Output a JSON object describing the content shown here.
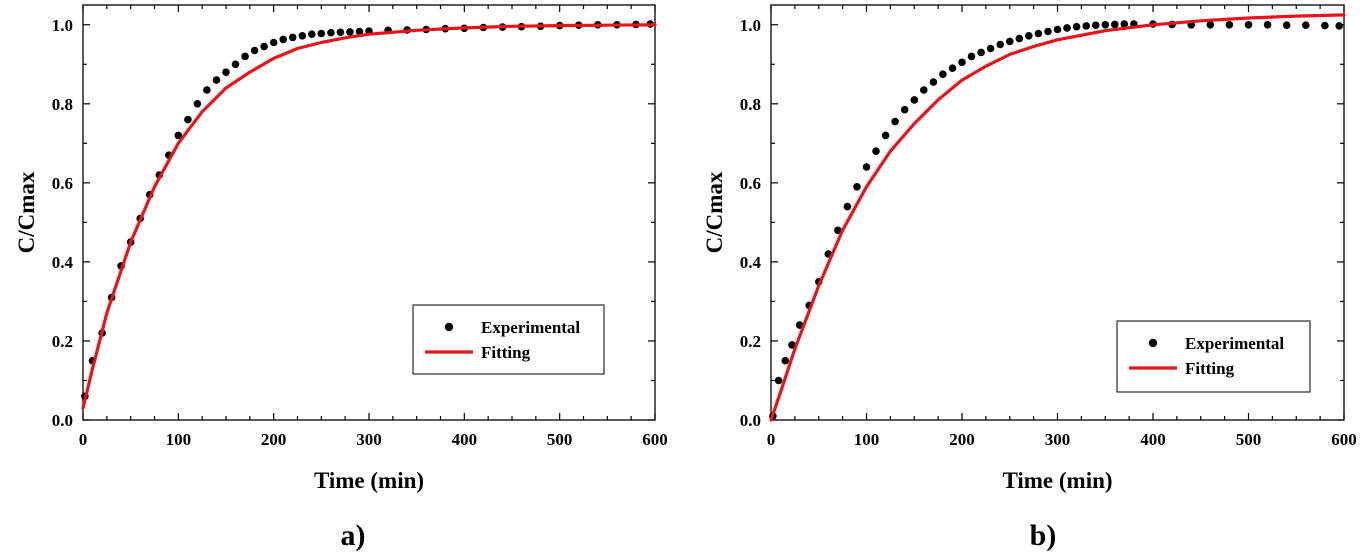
{
  "chart_data": [
    {
      "type": "scatter",
      "xlabel": "Time (min)",
      "ylabel": "C/Cmax",
      "xlim": [
        0,
        600
      ],
      "ylim": [
        0,
        1.05
      ],
      "xticks": [
        0,
        100,
        200,
        300,
        400,
        500,
        600
      ],
      "yticks": [
        0.0,
        0.2,
        0.4,
        0.6,
        0.8,
        1.0
      ],
      "ytick_labels": [
        "0.0",
        "0.2",
        "0.4",
        "0.6",
        "0.8",
        "1.0"
      ],
      "grid": false,
      "legend_position": "bottom-right",
      "panel_label": "a)",
      "series": [
        {
          "name": "Experimental",
          "kind": "scatter",
          "color": "#000000",
          "x": [
            2,
            10,
            20,
            30,
            40,
            50,
            60,
            70,
            80,
            90,
            100,
            110,
            120,
            130,
            140,
            150,
            160,
            170,
            180,
            190,
            200,
            210,
            220,
            230,
            240,
            250,
            260,
            270,
            280,
            290,
            300,
            320,
            340,
            360,
            380,
            400,
            420,
            440,
            460,
            480,
            500,
            520,
            540,
            560,
            580,
            595
          ],
          "y": [
            0.06,
            0.15,
            0.22,
            0.31,
            0.39,
            0.45,
            0.51,
            0.57,
            0.62,
            0.67,
            0.72,
            0.76,
            0.8,
            0.835,
            0.86,
            0.88,
            0.9,
            0.92,
            0.935,
            0.945,
            0.955,
            0.963,
            0.968,
            0.972,
            0.976,
            0.978,
            0.98,
            0.981,
            0.982,
            0.983,
            0.984,
            0.986,
            0.987,
            0.988,
            0.99,
            0.991,
            0.993,
            0.994,
            0.995,
            0.996,
            0.998,
            0.999,
            1.0,
            1.0,
            1.001,
            1.002
          ]
        },
        {
          "name": "Fitting",
          "kind": "line",
          "color": "#e8141a",
          "x": [
            0,
            10,
            25,
            50,
            75,
            100,
            125,
            150,
            175,
            200,
            225,
            250,
            275,
            300,
            350,
            400,
            450,
            500,
            550,
            600
          ],
          "y": [
            0.03,
            0.13,
            0.27,
            0.45,
            0.59,
            0.7,
            0.78,
            0.84,
            0.88,
            0.915,
            0.94,
            0.955,
            0.967,
            0.976,
            0.986,
            0.992,
            0.996,
            0.998,
            0.999,
            1.0
          ]
        }
      ]
    },
    {
      "type": "scatter",
      "xlabel": "Time (min)",
      "ylabel": "C/Cmax",
      "xlim": [
        0,
        600
      ],
      "ylim": [
        0,
        1.05
      ],
      "xticks": [
        0,
        100,
        200,
        300,
        400,
        500,
        600
      ],
      "yticks": [
        0.0,
        0.2,
        0.4,
        0.6,
        0.8,
        1.0
      ],
      "ytick_labels": [
        "0.0",
        "0.2",
        "0.4",
        "0.6",
        "0.8",
        "1.0"
      ],
      "grid": false,
      "legend_position": "bottom-right",
      "panel_label": "b)",
      "series": [
        {
          "name": "Experimental",
          "kind": "scatter",
          "color": "#000000",
          "x": [
            2,
            8,
            15,
            22,
            30,
            40,
            50,
            60,
            70,
            80,
            90,
            100,
            110,
            120,
            130,
            140,
            150,
            160,
            170,
            180,
            190,
            200,
            210,
            220,
            230,
            240,
            250,
            260,
            270,
            280,
            290,
            300,
            310,
            320,
            330,
            340,
            350,
            360,
            370,
            380,
            400,
            420,
            440,
            460,
            480,
            500,
            520,
            540,
            560,
            580,
            595
          ],
          "y": [
            0.01,
            0.1,
            0.15,
            0.19,
            0.24,
            0.29,
            0.35,
            0.42,
            0.48,
            0.54,
            0.59,
            0.64,
            0.68,
            0.72,
            0.755,
            0.785,
            0.81,
            0.835,
            0.855,
            0.875,
            0.89,
            0.905,
            0.92,
            0.93,
            0.94,
            0.95,
            0.958,
            0.965,
            0.972,
            0.978,
            0.983,
            0.988,
            0.992,
            0.995,
            0.997,
            0.999,
            1.0,
            1.001,
            1.002,
            1.002,
            1.002,
            1.001,
            1.0,
            1.0,
            1.0,
            1.0,
            1.0,
            0.999,
            0.999,
            0.998,
            0.997
          ]
        },
        {
          "name": "Fitting",
          "kind": "line",
          "color": "#e8141a",
          "x": [
            0,
            10,
            25,
            50,
            75,
            100,
            125,
            150,
            175,
            200,
            225,
            250,
            275,
            300,
            350,
            400,
            450,
            500,
            550,
            600
          ],
          "y": [
            0.0,
            0.07,
            0.18,
            0.34,
            0.48,
            0.59,
            0.68,
            0.75,
            0.81,
            0.86,
            0.895,
            0.925,
            0.945,
            0.962,
            0.985,
            1.0,
            1.01,
            1.017,
            1.022,
            1.025
          ]
        }
      ]
    }
  ]
}
